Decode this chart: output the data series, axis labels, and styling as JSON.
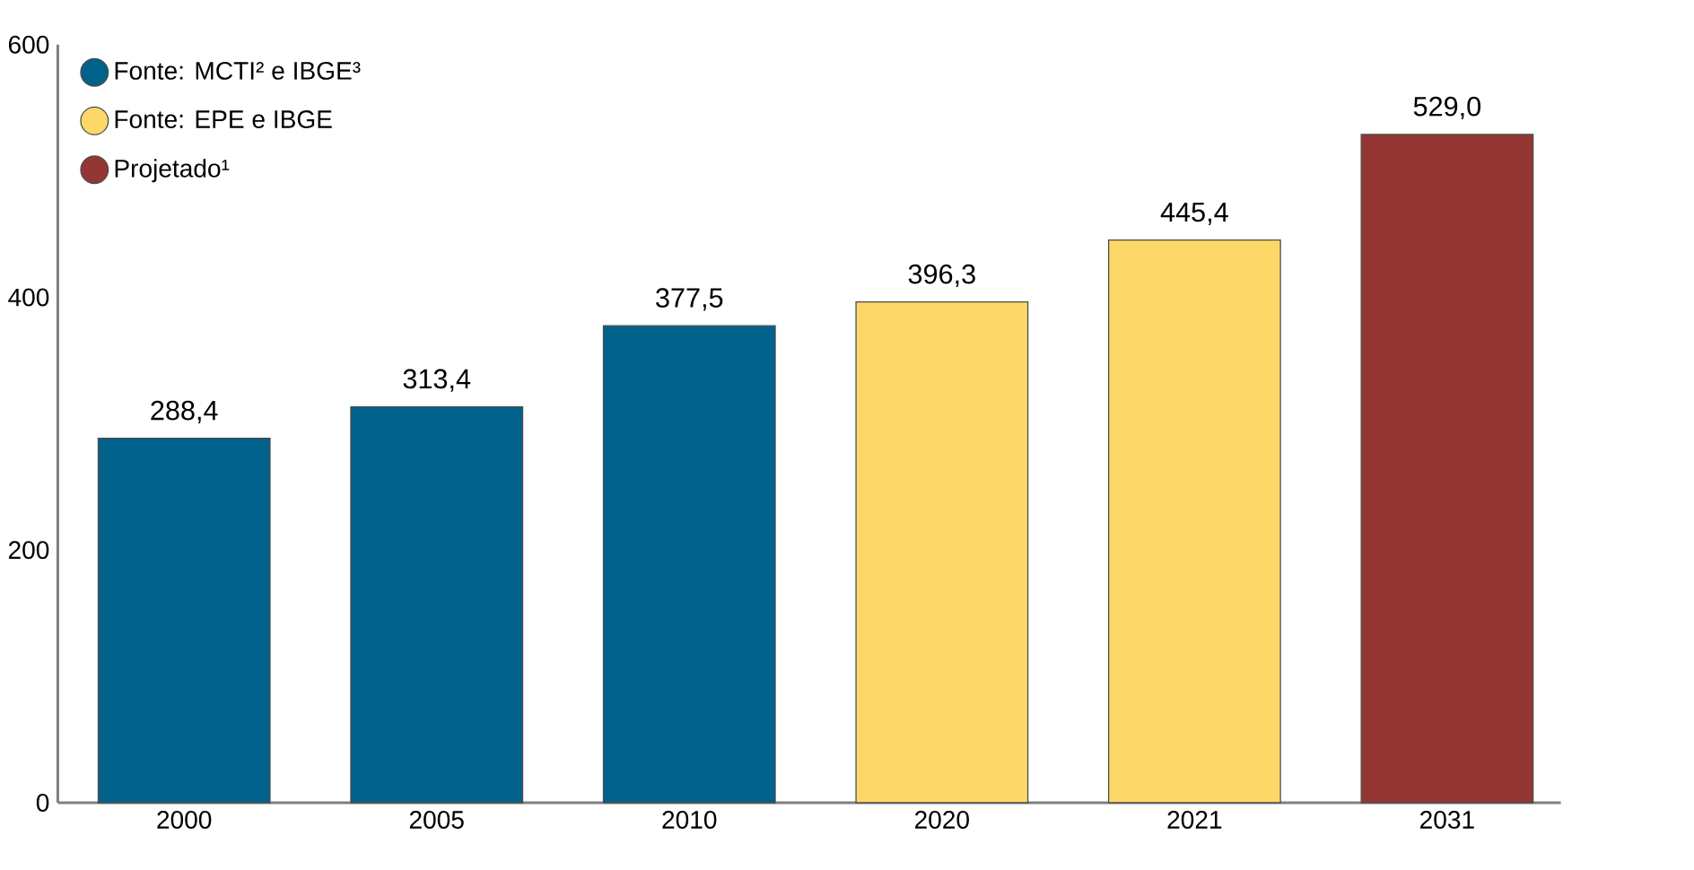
{
  "chart_data": {
    "type": "bar",
    "categories": [
      "2000",
      "2005",
      "2010",
      "2020",
      "2021",
      "2031"
    ],
    "series": [
      {
        "name": "Fonte: MCTI² e IBGE³",
        "color": "#00618a",
        "values": [
          288.4,
          313.4,
          377.5,
          null,
          null,
          null
        ],
        "value_labels": [
          "288,4",
          "313,4",
          "377,5",
          null,
          null,
          null
        ]
      },
      {
        "name": "Fonte: EPE e IBGE",
        "color": "#fdd868",
        "values": [
          null,
          null,
          null,
          396.3,
          445.4,
          null
        ],
        "value_labels": [
          null,
          null,
          null,
          "396,3",
          "445,4",
          null
        ]
      },
      {
        "name": "Projetado¹",
        "color": "#943634",
        "values": [
          null,
          null,
          null,
          null,
          null,
          529.0
        ],
        "value_labels": [
          null,
          null,
          null,
          null,
          null,
          "529,0"
        ]
      }
    ],
    "ylim": [
      0,
      600
    ],
    "yticks": [
      0,
      200,
      400,
      600
    ],
    "grid": false,
    "legend": "top left"
  }
}
